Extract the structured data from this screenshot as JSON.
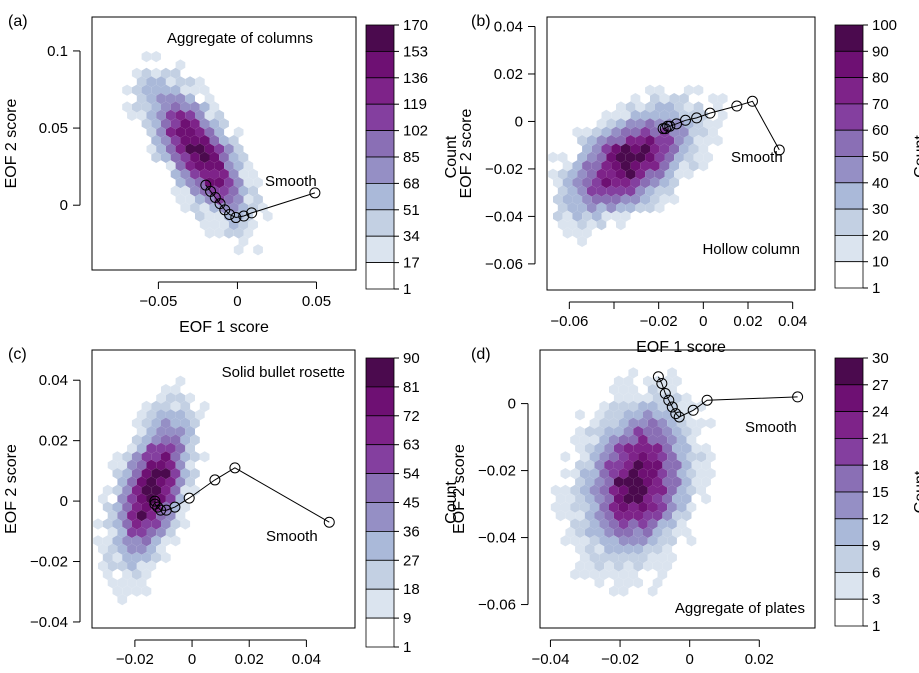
{
  "figure": {
    "x_label": "EOF 1 score",
    "y_label": "EOF 2 score",
    "colorbar_label": "Count"
  },
  "colors": {
    "scale": [
      "#ffffff",
      "#dbe4ef",
      "#c3d0e3",
      "#aab9d9",
      "#958fc5",
      "#8a6fb5",
      "#843f9f",
      "#7e2389",
      "#6e1073",
      "#4b0a4e"
    ],
    "line": "#000000"
  },
  "chart_data": [
    {
      "panel": "(a)",
      "type": "heatmap",
      "annotation": "Aggregate of columns",
      "smooth_label": "Smooth",
      "xlabel": "EOF 1 score",
      "ylabel": "EOF 2 score",
      "xlim": [
        -0.092,
        0.075
      ],
      "ylim": [
        -0.042,
        0.122
      ],
      "xticks": [
        -0.05,
        0,
        0.05
      ],
      "xtick_labels": [
        "−0.05",
        "0",
        "0.05"
      ],
      "yticks": [
        0,
        0.05,
        0.1
      ],
      "ytick_labels": [
        "0",
        "0.05",
        "0.1"
      ],
      "colorbar_ticks": [
        "1",
        "17",
        "34",
        "51",
        "68",
        "85",
        "102",
        "119",
        "136",
        "153",
        "170"
      ],
      "colorbar_max": 170,
      "cloud": {
        "center": [
          -0.025,
          0.035
        ],
        "sx": 0.018,
        "sy": 0.026,
        "rho": -0.7,
        "peak": 170,
        "max_r": 2.3
      },
      "smooth": {
        "x": [
          -0.02,
          -0.017,
          -0.014,
          -0.011,
          -0.008,
          -0.005,
          -0.001,
          0.004,
          0.009,
          0.049
        ],
        "y": [
          0.013,
          0.009,
          0.005,
          0.001,
          -0.003,
          -0.006,
          -0.008,
          -0.007,
          -0.005,
          0.008
        ]
      }
    },
    {
      "panel": "(b)",
      "type": "heatmap",
      "annotation": "Hollow column",
      "smooth_label": "Smooth",
      "xlabel": "EOF 1 score",
      "ylabel": "EOF 2 score",
      "xlim": [
        -0.07,
        0.05
      ],
      "ylim": [
        -0.071,
        0.044
      ],
      "xticks": [
        -0.06,
        -0.04,
        -0.02,
        0,
        0.02,
        0.04
      ],
      "xtick_labels": [
        "−0.06",
        "",
        "−0.02",
        "0",
        "0.02",
        "0.04"
      ],
      "yticks": [
        -0.06,
        -0.04,
        -0.02,
        0,
        0.02,
        0.04
      ],
      "ytick_labels": [
        "−0.06",
        "−0.04",
        "−0.02",
        "0",
        "0.02",
        "0.04"
      ],
      "colorbar_ticks": [
        "1",
        "10",
        "20",
        "30",
        "40",
        "50",
        "60",
        "70",
        "80",
        "90",
        "100"
      ],
      "colorbar_max": 100,
      "cloud": {
        "center": [
          -0.033,
          -0.017
        ],
        "sx": 0.016,
        "sy": 0.013,
        "rho": 0.55,
        "peak": 100,
        "max_r": 2.4
      },
      "smooth": {
        "x": [
          -0.018,
          -0.017,
          -0.016,
          -0.015,
          -0.012,
          -0.008,
          -0.003,
          0.003,
          0.015,
          0.022,
          0.034
        ],
        "y": [
          -0.003,
          -0.003,
          -0.002,
          -0.002,
          -0.001,
          0.0005,
          0.0015,
          0.0035,
          0.0065,
          0.0085,
          -0.012
        ]
      }
    },
    {
      "panel": "(c)",
      "type": "heatmap",
      "annotation": "Solid bullet rosette",
      "smooth_label": "Smooth",
      "xlabel": "EOF 1 score",
      "ylabel": "EOF 2 score",
      "xlim": [
        -0.035,
        0.057
      ],
      "ylim": [
        -0.042,
        0.05
      ],
      "xticks": [
        -0.02,
        0,
        0.02,
        0.04
      ],
      "xtick_labels": [
        "−0.02",
        "0",
        "0.02",
        "0.04"
      ],
      "yticks": [
        -0.04,
        -0.02,
        0,
        0.02,
        0.04
      ],
      "ytick_labels": [
        "−0.04",
        "−0.02",
        "0",
        "0.02",
        "0.04"
      ],
      "colorbar_ticks": [
        "1",
        "9",
        "18",
        "27",
        "36",
        "45",
        "54",
        "63",
        "72",
        "81",
        "90"
      ],
      "colorbar_max": 90,
      "cloud": {
        "center": [
          -0.014,
          0.004
        ],
        "sx": 0.0075,
        "sy": 0.014,
        "rho": 0.5,
        "peak": 90,
        "max_r": 2.4
      },
      "smooth": {
        "x": [
          -0.013,
          -0.013,
          -0.012,
          -0.011,
          -0.009,
          -0.006,
          -0.001,
          0.008,
          0.015,
          0.048
        ],
        "y": [
          0.0,
          -0.001,
          -0.002,
          -0.003,
          -0.003,
          -0.002,
          0.001,
          0.007,
          0.011,
          -0.007
        ]
      }
    },
    {
      "panel": "(d)",
      "type": "heatmap",
      "annotation": "Aggregate of plates",
      "smooth_label": "Smooth",
      "xlabel": "EOF 1 score",
      "ylabel": "EOF 2 score",
      "xlim": [
        -0.043,
        0.036
      ],
      "ylim": [
        -0.067,
        0.016
      ],
      "xticks": [
        -0.04,
        -0.02,
        0,
        0.02
      ],
      "xtick_labels": [
        "−0.04",
        "−0.02",
        "0",
        "0.02"
      ],
      "yticks": [
        -0.06,
        -0.04,
        -0.02,
        0
      ],
      "ytick_labels": [
        "−0.06",
        "−0.04",
        "−0.02",
        "0"
      ],
      "colorbar_ticks": [
        "1",
        "3",
        "6",
        "9",
        "12",
        "15",
        "18",
        "21",
        "24",
        "27",
        "30"
      ],
      "colorbar_max": 30,
      "cloud": {
        "center": [
          -0.015,
          -0.023
        ],
        "sx": 0.0085,
        "sy": 0.0125,
        "rho": 0.2,
        "peak": 30,
        "max_r": 2.5
      },
      "smooth": {
        "x": [
          -0.009,
          -0.008,
          -0.007,
          -0.006,
          -0.005,
          -0.004,
          -0.003,
          0.001,
          0.005,
          0.031
        ],
        "y": [
          0.008,
          0.006,
          0.003,
          0.001,
          -0.001,
          -0.003,
          -0.004,
          -0.002,
          0.001,
          0.002
        ]
      }
    }
  ]
}
